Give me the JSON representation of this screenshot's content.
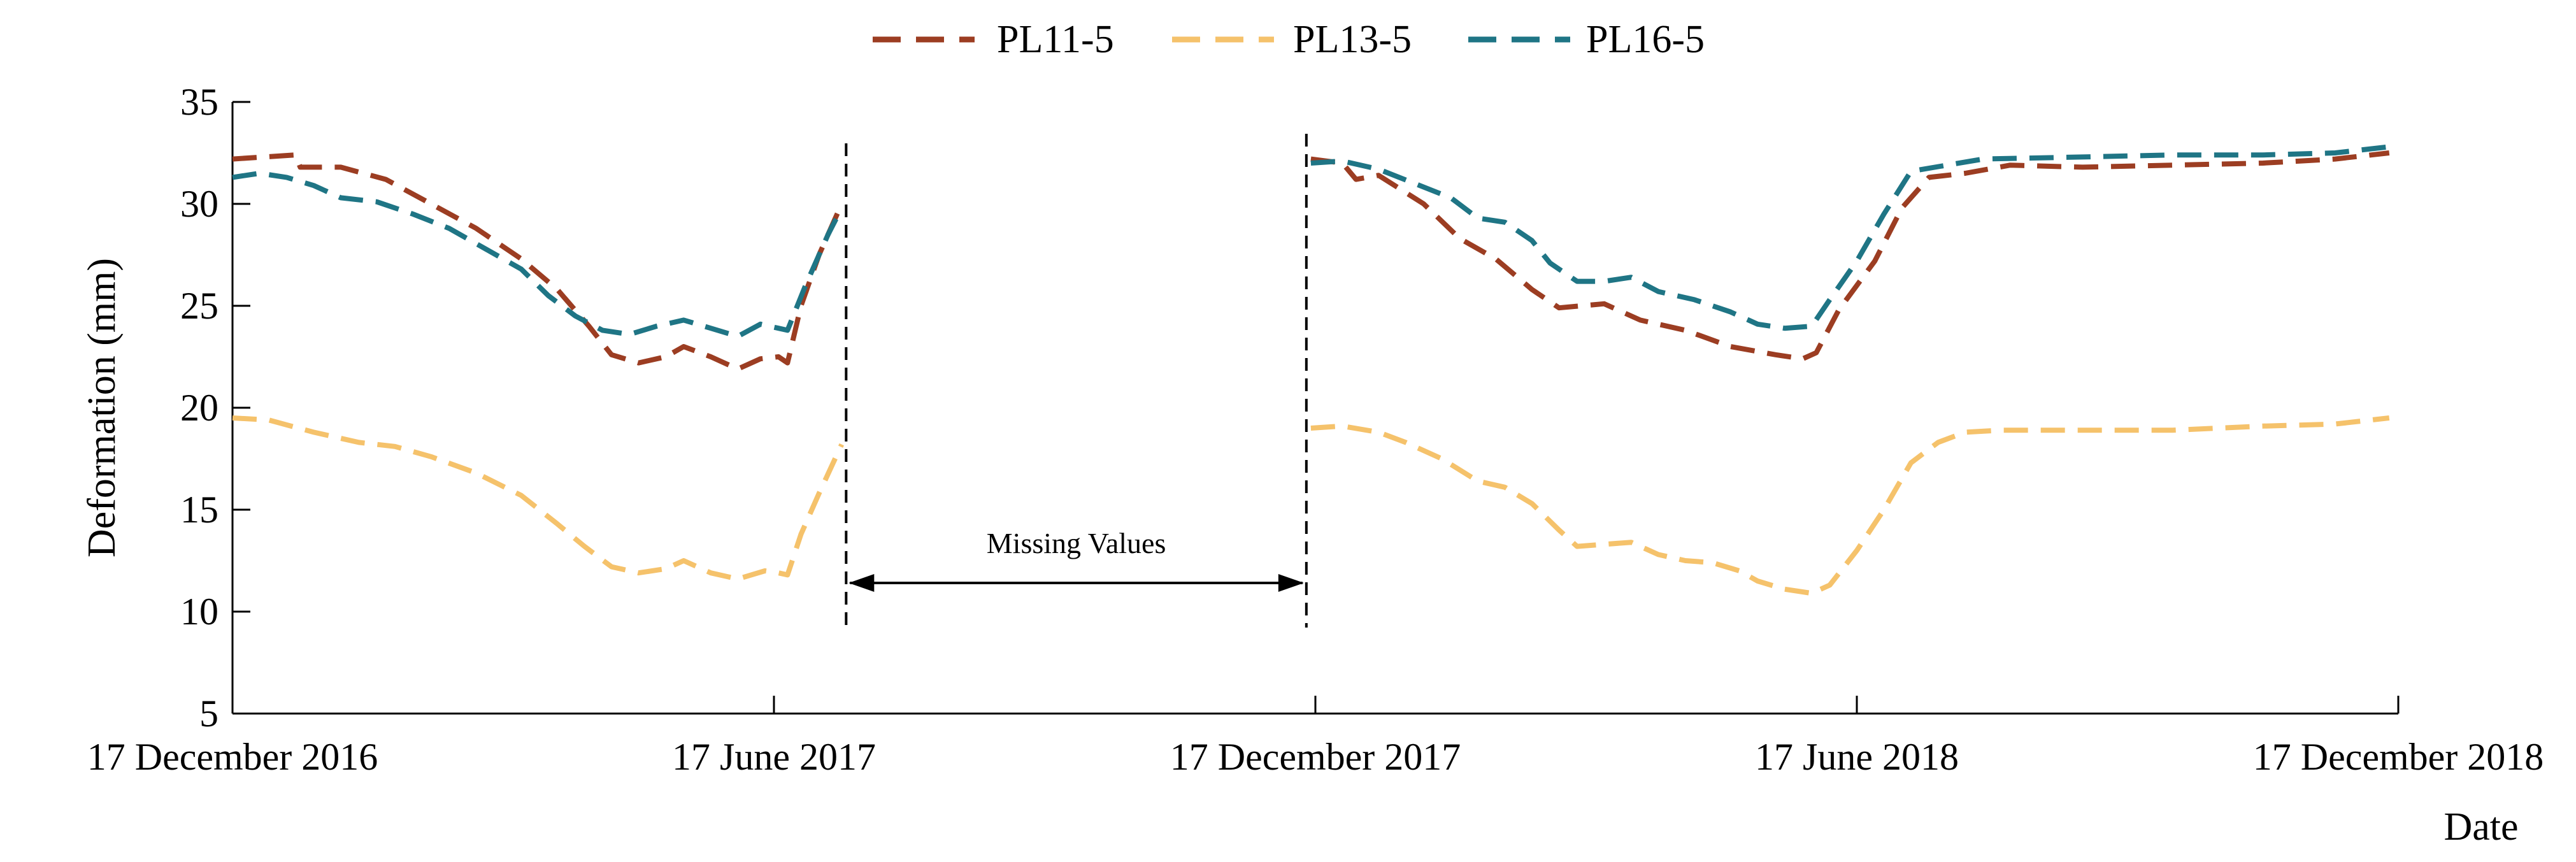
{
  "chart_data": {
    "type": "line",
    "title": "",
    "xlabel": "Date",
    "ylabel": "Deformation (mm)",
    "ylim": [
      5,
      35
    ],
    "yticks": [
      5,
      10,
      15,
      20,
      25,
      30,
      35
    ],
    "xlim": [
      0,
      24
    ],
    "x_unit": "months since 17 December 2016",
    "xticks": [
      {
        "pos": 0,
        "label": "17 December 2016"
      },
      {
        "pos": 6,
        "label": "17 June 2017"
      },
      {
        "pos": 12,
        "label": "17 December 2017"
      },
      {
        "pos": 18,
        "label": "17 June 2018"
      },
      {
        "pos": 24,
        "label": "17 December 2018"
      }
    ],
    "legend_position": "top-center",
    "grid": false,
    "gap": {
      "start": 6.8,
      "end": 11.9,
      "label": "Missing Values"
    },
    "colors": {
      "PL11-5": "#9c3d22",
      "PL13-5": "#f5c26b",
      "PL16-5": "#1f7585"
    },
    "series": [
      {
        "name": "PL11-5",
        "color": "#9c3d22",
        "segments": [
          [
            [
              0,
              32.2
            ],
            [
              0.7,
              32.4
            ],
            [
              0.75,
              31.8
            ],
            [
              1.2,
              31.8
            ],
            [
              1.7,
              31.2
            ],
            [
              2.2,
              30.0
            ],
            [
              2.7,
              28.8
            ],
            [
              3.2,
              27.3
            ],
            [
              3.6,
              25.8
            ],
            [
              3.95,
              24.0
            ],
            [
              4.2,
              22.6
            ],
            [
              4.5,
              22.2
            ],
            [
              4.8,
              22.5
            ],
            [
              5.0,
              23.0
            ],
            [
              5.3,
              22.5
            ],
            [
              5.6,
              21.9
            ],
            [
              5.85,
              22.4
            ],
            [
              6.05,
              22.5
            ],
            [
              6.15,
              22.2
            ],
            [
              6.3,
              25.0
            ],
            [
              6.5,
              27.5
            ],
            [
              6.7,
              29.5
            ],
            [
              6.75,
              30.0
            ]
          ],
          [
            [
              11.95,
              32.2
            ],
            [
              12.3,
              32.0
            ],
            [
              12.45,
              31.2
            ],
            [
              12.7,
              31.4
            ],
            [
              13.2,
              30.0
            ],
            [
              13.6,
              28.3
            ],
            [
              14.0,
              27.3
            ],
            [
              14.4,
              25.8
            ],
            [
              14.7,
              24.9
            ],
            [
              15.2,
              25.1
            ],
            [
              15.6,
              24.3
            ],
            [
              16.1,
              23.8
            ],
            [
              16.6,
              23.0
            ],
            [
              17.1,
              22.6
            ],
            [
              17.4,
              22.4
            ],
            [
              17.55,
              22.7
            ],
            [
              17.8,
              24.8
            ],
            [
              18.2,
              27.2
            ],
            [
              18.5,
              29.8
            ],
            [
              18.8,
              31.3
            ],
            [
              19.2,
              31.5
            ],
            [
              19.7,
              31.9
            ],
            [
              20.5,
              31.8
            ],
            [
              21.5,
              31.9
            ],
            [
              22.5,
              32.0
            ],
            [
              23.3,
              32.2
            ],
            [
              23.9,
              32.5
            ]
          ]
        ]
      },
      {
        "name": "PL13-5",
        "color": "#f5c26b",
        "segments": [
          [
            [
              0,
              19.5
            ],
            [
              0.4,
              19.4
            ],
            [
              0.9,
              18.8
            ],
            [
              1.4,
              18.3
            ],
            [
              1.8,
              18.1
            ],
            [
              2.2,
              17.6
            ],
            [
              2.7,
              16.8
            ],
            [
              3.2,
              15.7
            ],
            [
              3.6,
              14.3
            ],
            [
              3.9,
              13.2
            ],
            [
              4.2,
              12.2
            ],
            [
              4.5,
              11.9
            ],
            [
              4.8,
              12.1
            ],
            [
              5.0,
              12.5
            ],
            [
              5.3,
              11.9
            ],
            [
              5.6,
              11.6
            ],
            [
              5.9,
              12.0
            ],
            [
              6.05,
              11.9
            ],
            [
              6.15,
              11.8
            ],
            [
              6.3,
              13.8
            ],
            [
              6.5,
              15.8
            ],
            [
              6.75,
              18.2
            ]
          ],
          [
            [
              11.95,
              19.0
            ],
            [
              12.3,
              19.1
            ],
            [
              12.7,
              18.8
            ],
            [
              13.0,
              18.3
            ],
            [
              13.4,
              17.5
            ],
            [
              13.8,
              16.4
            ],
            [
              14.1,
              16.1
            ],
            [
              14.4,
              15.3
            ],
            [
              14.7,
              14.0
            ],
            [
              14.9,
              13.2
            ],
            [
              15.2,
              13.3
            ],
            [
              15.5,
              13.4
            ],
            [
              15.8,
              12.8
            ],
            [
              16.1,
              12.5
            ],
            [
              16.4,
              12.4
            ],
            [
              16.7,
              12.0
            ],
            [
              16.9,
              11.5
            ],
            [
              17.2,
              11.1
            ],
            [
              17.5,
              10.9
            ],
            [
              17.7,
              11.3
            ],
            [
              18.0,
              13.0
            ],
            [
              18.3,
              15.0
            ],
            [
              18.6,
              17.3
            ],
            [
              18.9,
              18.3
            ],
            [
              19.2,
              18.8
            ],
            [
              19.6,
              18.9
            ],
            [
              20.5,
              18.9
            ],
            [
              21.5,
              18.9
            ],
            [
              22.5,
              19.1
            ],
            [
              23.3,
              19.2
            ],
            [
              23.9,
              19.5
            ]
          ]
        ]
      },
      {
        "name": "PL16-5",
        "color": "#1f7585",
        "segments": [
          [
            [
              0,
              31.3
            ],
            [
              0.3,
              31.5
            ],
            [
              0.6,
              31.3
            ],
            [
              0.9,
              30.9
            ],
            [
              1.2,
              30.3
            ],
            [
              1.6,
              30.1
            ],
            [
              2.0,
              29.5
            ],
            [
              2.4,
              28.8
            ],
            [
              2.8,
              27.8
            ],
            [
              3.2,
              26.8
            ],
            [
              3.5,
              25.5
            ],
            [
              3.8,
              24.5
            ],
            [
              4.1,
              23.8
            ],
            [
              4.4,
              23.6
            ],
            [
              4.7,
              24.0
            ],
            [
              5.0,
              24.3
            ],
            [
              5.3,
              23.9
            ],
            [
              5.6,
              23.5
            ],
            [
              5.85,
              24.1
            ],
            [
              6.05,
              23.9
            ],
            [
              6.15,
              23.8
            ],
            [
              6.35,
              26.0
            ],
            [
              6.6,
              28.5
            ],
            [
              6.75,
              29.8
            ]
          ],
          [
            [
              11.95,
              32.0
            ],
            [
              12.3,
              32.1
            ],
            [
              12.7,
              31.7
            ],
            [
              13.1,
              31.0
            ],
            [
              13.5,
              30.3
            ],
            [
              13.8,
              29.3
            ],
            [
              14.1,
              29.1
            ],
            [
              14.4,
              28.2
            ],
            [
              14.6,
              27.1
            ],
            [
              14.9,
              26.2
            ],
            [
              15.2,
              26.2
            ],
            [
              15.5,
              26.4
            ],
            [
              15.8,
              25.7
            ],
            [
              16.2,
              25.3
            ],
            [
              16.6,
              24.7
            ],
            [
              16.9,
              24.1
            ],
            [
              17.2,
              23.9
            ],
            [
              17.5,
              24.0
            ],
            [
              17.7,
              25.3
            ],
            [
              18.0,
              27.2
            ],
            [
              18.3,
              29.5
            ],
            [
              18.6,
              31.6
            ],
            [
              19.0,
              31.9
            ],
            [
              19.4,
              32.2
            ],
            [
              20.5,
              32.3
            ],
            [
              21.5,
              32.4
            ],
            [
              22.5,
              32.4
            ],
            [
              23.3,
              32.5
            ],
            [
              23.9,
              32.8
            ]
          ]
        ]
      }
    ]
  }
}
